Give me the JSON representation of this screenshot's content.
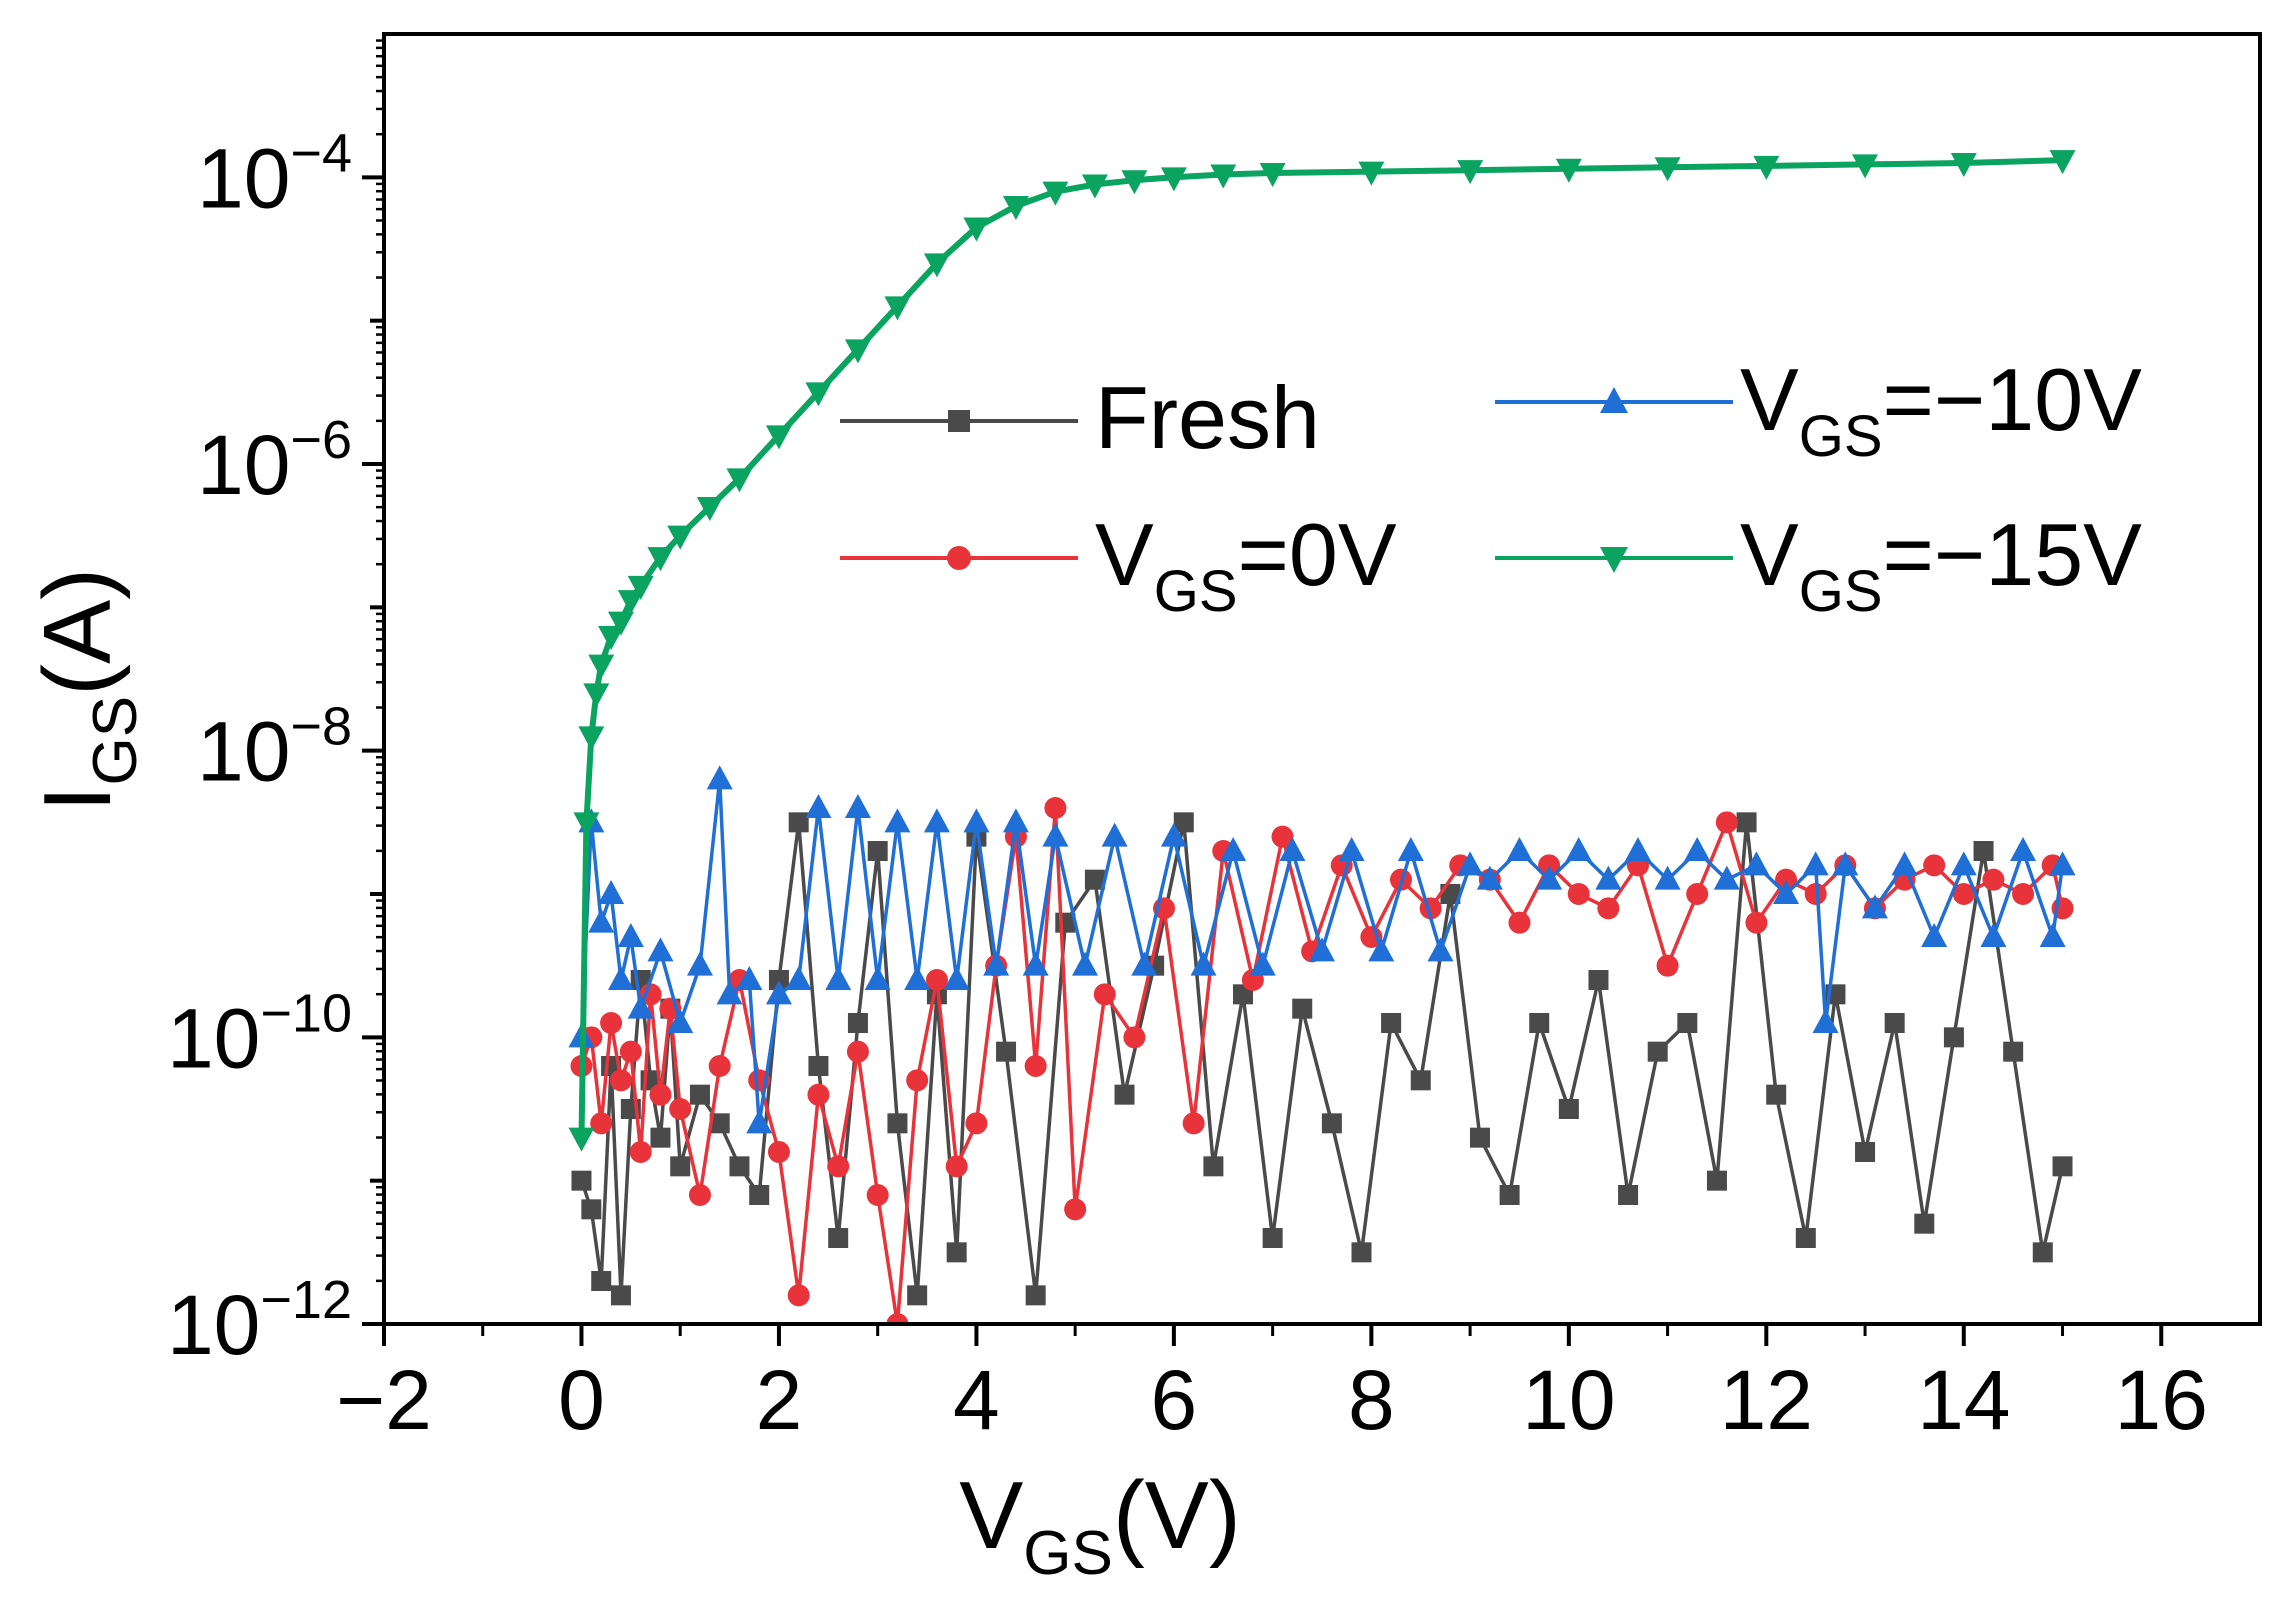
{
  "chart_data": {
    "type": "line",
    "title": "",
    "xlabel": {
      "main": "V",
      "sub": "GS",
      "rest": "(V)"
    },
    "ylabel": {
      "main": "I",
      "sub": "GS",
      "rest": "(A)"
    },
    "xlim": [
      -2,
      17
    ],
    "ylim_log10": [
      -12,
      -3
    ],
    "x_ticks": [
      {
        "value": -2,
        "label": "−2"
      },
      {
        "value": 0,
        "label": "0"
      },
      {
        "value": 2,
        "label": "2"
      },
      {
        "value": 4,
        "label": "4"
      },
      {
        "value": 6,
        "label": "6"
      },
      {
        "value": 8,
        "label": "8"
      },
      {
        "value": 10,
        "label": "10"
      },
      {
        "value": 12,
        "label": "12"
      },
      {
        "value": 14,
        "label": "14"
      },
      {
        "value": 16,
        "label": "16"
      }
    ],
    "y_ticks": [
      {
        "exp": -4,
        "base": "10",
        "sup": "−4"
      },
      {
        "exp": -6,
        "base": "10",
        "sup": "−6"
      },
      {
        "exp": -8,
        "base": "10",
        "sup": "−8"
      },
      {
        "exp": -10,
        "base": "10",
        "sup": "−10"
      },
      {
        "exp": -12,
        "base": "10",
        "sup": "−12"
      }
    ],
    "series": [
      {
        "name": "Fresh",
        "legend": {
          "main": "Fresh",
          "sub": "",
          "rest": ""
        },
        "color": "#4a4a4a",
        "marker": "square",
        "x": [
          0.0,
          0.1,
          0.2,
          0.3,
          0.4,
          0.5,
          0.6,
          0.7,
          0.8,
          0.9,
          1.0,
          1.2,
          1.4,
          1.6,
          1.8,
          2.0,
          2.2,
          2.4,
          2.6,
          2.8,
          3.0,
          3.2,
          3.4,
          3.6,
          3.8,
          4.0,
          4.3,
          4.6,
          4.9,
          5.2,
          5.5,
          5.8,
          6.1,
          6.4,
          6.7,
          7.0,
          7.3,
          7.6,
          7.9,
          8.2,
          8.5,
          8.8,
          9.1,
          9.4,
          9.7,
          10.0,
          10.3,
          10.6,
          10.9,
          11.2,
          11.5,
          11.8,
          12.1,
          12.4,
          12.7,
          13.0,
          13.3,
          13.6,
          13.9,
          14.2,
          14.5,
          14.8,
          15.0
        ],
        "log10y": [
          -11.0,
          -11.2,
          -11.7,
          -10.2,
          -11.8,
          -10.5,
          -9.6,
          -10.3,
          -10.7,
          -9.8,
          -10.9,
          -10.4,
          -10.6,
          -10.9,
          -11.1,
          -9.6,
          -8.5,
          -10.2,
          -11.4,
          -9.9,
          -8.7,
          -10.6,
          -11.8,
          -9.7,
          -11.5,
          -8.6,
          -10.1,
          -11.8,
          -9.2,
          -8.9,
          -10.4,
          -9.5,
          -8.5,
          -10.9,
          -9.7,
          -11.4,
          -9.8,
          -10.6,
          -11.5,
          -9.9,
          -10.3,
          -9.0,
          -10.7,
          -11.1,
          -9.9,
          -10.5,
          -9.6,
          -11.1,
          -10.1,
          -9.9,
          -11.0,
          -8.5,
          -10.4,
          -11.4,
          -9.7,
          -10.8,
          -9.9,
          -11.3,
          -10.0,
          -8.7,
          -10.1,
          -11.5,
          -10.9
        ]
      },
      {
        "name": "VGS=0V",
        "legend": {
          "main": "V",
          "sub": "GS",
          "rest": "=0V"
        },
        "color": "#e8333a",
        "marker": "circle",
        "x": [
          0.0,
          0.1,
          0.2,
          0.3,
          0.4,
          0.5,
          0.6,
          0.7,
          0.8,
          0.9,
          1.0,
          1.2,
          1.4,
          1.6,
          1.8,
          2.0,
          2.2,
          2.4,
          2.6,
          2.8,
          3.0,
          3.2,
          3.4,
          3.6,
          3.8,
          4.0,
          4.2,
          4.4,
          4.6,
          4.8,
          5.0,
          5.3,
          5.6,
          5.9,
          6.2,
          6.5,
          6.8,
          7.1,
          7.4,
          7.7,
          8.0,
          8.3,
          8.6,
          8.9,
          9.2,
          9.5,
          9.8,
          10.1,
          10.4,
          10.7,
          11.0,
          11.3,
          11.6,
          11.9,
          12.2,
          12.5,
          12.8,
          13.1,
          13.4,
          13.7,
          14.0,
          14.3,
          14.6,
          14.9,
          15.0
        ],
        "log10y": [
          -10.2,
          -10.0,
          -10.6,
          -9.9,
          -10.3,
          -10.1,
          -10.8,
          -9.7,
          -10.4,
          -9.8,
          -10.5,
          -11.1,
          -10.2,
          -9.6,
          -10.3,
          -10.8,
          -11.8,
          -10.4,
          -10.9,
          -10.1,
          -11.1,
          -12.0,
          -10.3,
          -9.6,
          -10.9,
          -10.6,
          -9.5,
          -8.6,
          -10.2,
          -8.4,
          -11.2,
          -9.7,
          -10.0,
          -9.1,
          -10.6,
          -8.7,
          -9.6,
          -8.6,
          -9.4,
          -8.8,
          -9.3,
          -8.9,
          -9.1,
          -8.8,
          -8.9,
          -9.2,
          -8.8,
          -9.0,
          -9.1,
          -8.8,
          -9.5,
          -9.0,
          -8.5,
          -9.2,
          -8.9,
          -9.0,
          -8.8,
          -9.1,
          -8.9,
          -8.8,
          -9.0,
          -8.9,
          -9.0,
          -8.8,
          -9.1
        ]
      },
      {
        "name": "VGS=-10V",
        "legend": {
          "main": "V",
          "sub": "GS",
          "rest": "=−10V"
        },
        "color": "#1f6fd6",
        "marker": "triangle-up",
        "x": [
          0.0,
          0.1,
          0.2,
          0.3,
          0.4,
          0.5,
          0.6,
          0.8,
          1.0,
          1.2,
          1.4,
          1.5,
          1.7,
          1.8,
          2.0,
          2.2,
          2.4,
          2.6,
          2.8,
          3.0,
          3.2,
          3.4,
          3.6,
          3.8,
          4.0,
          4.2,
          4.4,
          4.6,
          4.8,
          5.1,
          5.4,
          5.7,
          6.0,
          6.3,
          6.6,
          6.9,
          7.2,
          7.5,
          7.8,
          8.1,
          8.4,
          8.7,
          9.0,
          9.2,
          9.5,
          9.8,
          10.1,
          10.4,
          10.7,
          11.0,
          11.3,
          11.6,
          11.9,
          12.2,
          12.5,
          12.6,
          12.8,
          13.1,
          13.4,
          13.7,
          14.0,
          14.3,
          14.6,
          14.9,
          15.0
        ],
        "log10y": [
          -10.0,
          -8.5,
          -9.2,
          -9.0,
          -9.6,
          -9.3,
          -9.8,
          -9.4,
          -9.9,
          -9.5,
          -8.2,
          -9.7,
          -9.6,
          -10.6,
          -9.7,
          -9.6,
          -8.4,
          -9.6,
          -8.4,
          -9.6,
          -8.5,
          -9.6,
          -8.5,
          -9.6,
          -8.5,
          -9.5,
          -8.5,
          -9.5,
          -8.6,
          -9.5,
          -8.6,
          -9.5,
          -8.6,
          -9.5,
          -8.7,
          -9.5,
          -8.7,
          -9.4,
          -8.7,
          -9.4,
          -8.7,
          -9.4,
          -8.8,
          -8.9,
          -8.7,
          -8.9,
          -8.7,
          -8.9,
          -8.7,
          -8.9,
          -8.7,
          -8.9,
          -8.8,
          -9.0,
          -8.8,
          -9.9,
          -8.8,
          -9.1,
          -8.8,
          -9.3,
          -8.8,
          -9.3,
          -8.7,
          -9.3,
          -8.8
        ]
      },
      {
        "name": "VGS=-15V",
        "legend": {
          "main": "V",
          "sub": "GS",
          "rest": "=−15V"
        },
        "color": "#0aa35f",
        "marker": "triangle-down",
        "x": [
          0.0,
          0.05,
          0.1,
          0.15,
          0.2,
          0.3,
          0.4,
          0.5,
          0.6,
          0.8,
          1.0,
          1.3,
          1.6,
          2.0,
          2.4,
          2.8,
          3.2,
          3.6,
          4.0,
          4.4,
          4.8,
          5.2,
          5.6,
          6.0,
          6.5,
          7.0,
          8.0,
          9.0,
          10.0,
          11.0,
          12.0,
          13.0,
          14.0,
          15.0
        ],
        "log10y": [
          -10.7,
          -8.5,
          -7.9,
          -7.6,
          -7.4,
          -7.2,
          -7.1,
          -6.95,
          -6.85,
          -6.65,
          -6.5,
          -6.3,
          -6.1,
          -5.8,
          -5.5,
          -5.2,
          -4.9,
          -4.6,
          -4.35,
          -4.2,
          -4.1,
          -4.05,
          -4.02,
          -4.0,
          -3.98,
          -3.97,
          -3.96,
          -3.95,
          -3.94,
          -3.93,
          -3.92,
          -3.91,
          -3.9,
          -3.88
        ]
      }
    ]
  }
}
